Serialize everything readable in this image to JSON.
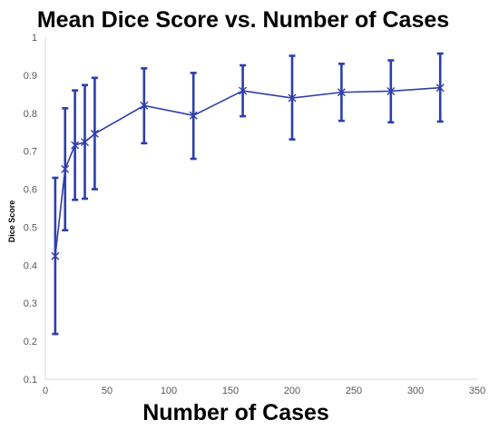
{
  "chart_data": {
    "type": "line",
    "title": "Mean Dice Score vs. Number of Cases",
    "xlabel": "Number of Cases",
    "ylabel": "Dice Score",
    "xlim": [
      0,
      350
    ],
    "ylim": [
      0.1,
      1
    ],
    "x_ticks": [
      "0",
      "50",
      "100",
      "150",
      "200",
      "250",
      "300",
      "350"
    ],
    "y_ticks": [
      "0.1",
      "0.2",
      "0.3",
      "0.4",
      "0.5",
      "0.6",
      "0.7",
      "0.8",
      "0.9",
      "1"
    ],
    "grid": false,
    "legend": "none",
    "marker": "x",
    "series": [
      {
        "color": "#2E3EAB",
        "x": [
          8,
          16,
          24,
          32,
          40,
          80,
          120,
          160,
          200,
          240,
          280,
          320
        ],
        "y": [
          0.424,
          0.653,
          0.716,
          0.724,
          0.746,
          0.82,
          0.794,
          0.859,
          0.84,
          0.855,
          0.858,
          0.867
        ],
        "error_low": [
          0.219,
          0.492,
          0.572,
          0.575,
          0.6,
          0.721,
          0.68,
          0.792,
          0.731,
          0.78,
          0.776,
          0.778
        ],
        "error_high": [
          0.63,
          0.813,
          0.86,
          0.874,
          0.893,
          0.918,
          0.906,
          0.926,
          0.951,
          0.93,
          0.939,
          0.957
        ]
      }
    ]
  }
}
